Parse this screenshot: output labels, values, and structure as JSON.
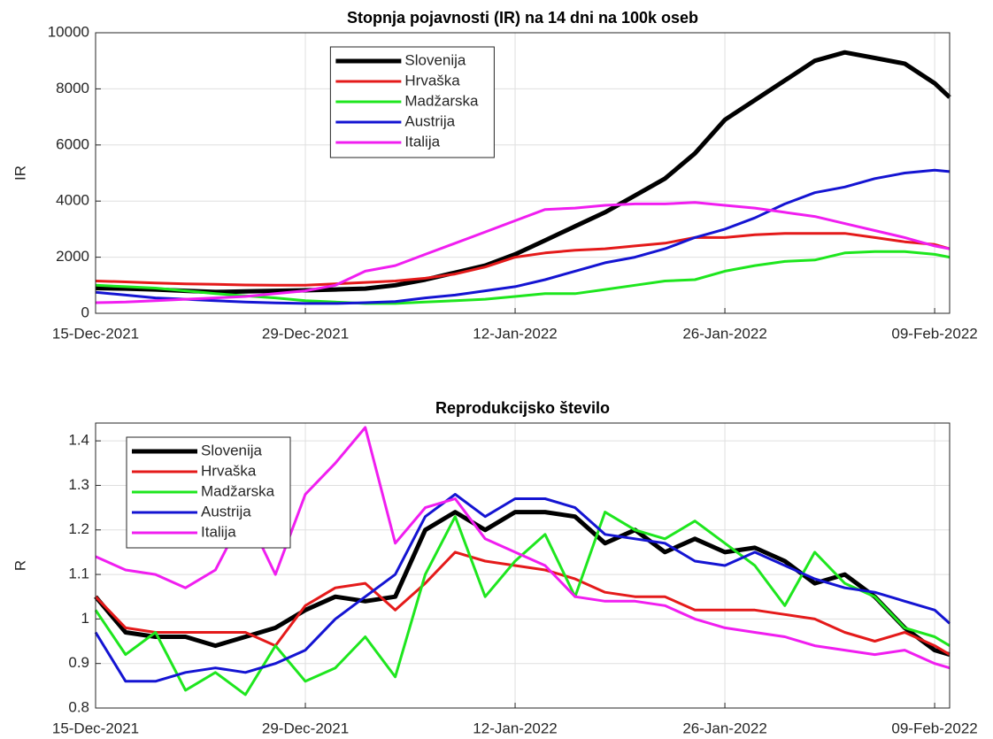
{
  "chart_data": [
    {
      "type": "line",
      "title": "Stopnja pojavnosti (IR) na 14 dni na 100k oseb",
      "y_label": "IR",
      "x": [
        "15-Dec-2021",
        "17-Dec-2021",
        "19-Dec-2021",
        "21-Dec-2021",
        "23-Dec-2021",
        "25-Dec-2021",
        "27-Dec-2021",
        "29-Dec-2021",
        "31-Dec-2021",
        "02-Jan-2022",
        "04-Jan-2022",
        "06-Jan-2022",
        "08-Jan-2022",
        "10-Jan-2022",
        "12-Jan-2022",
        "14-Jan-2022",
        "16-Jan-2022",
        "18-Jan-2022",
        "20-Jan-2022",
        "22-Jan-2022",
        "24-Jan-2022",
        "26-Jan-2022",
        "28-Jan-2022",
        "30-Jan-2022",
        "01-Feb-2022",
        "03-Feb-2022",
        "05-Feb-2022",
        "07-Feb-2022",
        "09-Feb-2022",
        "10-Feb-2022"
      ],
      "xlim": [
        "15-Dec-2021",
        "10-Feb-2022"
      ],
      "xticks": [
        "15-Dec-2021",
        "29-Dec-2021",
        "12-Jan-2022",
        "26-Jan-2022",
        "09-Feb-2022"
      ],
      "ylim": [
        0,
        10000
      ],
      "yticks": [
        0,
        2000,
        4000,
        6000,
        8000,
        10000
      ],
      "grid": true,
      "legend": "north",
      "series": [
        {
          "name": "Slovenija",
          "color": "#000000",
          "width": 5,
          "values": [
            900,
            880,
            850,
            800,
            760,
            780,
            800,
            820,
            850,
            880,
            1000,
            1200,
            1450,
            1700,
            2100,
            2600,
            3100,
            3600,
            4200,
            4800,
            5700,
            6900,
            7600,
            8300,
            9000,
            9300,
            9100,
            8900,
            8200,
            7700
          ]
        },
        {
          "name": "Hrvaška",
          "color": "#e41a1a",
          "width": 3,
          "values": [
            1150,
            1120,
            1080,
            1050,
            1030,
            1010,
            1000,
            1000,
            1050,
            1100,
            1150,
            1250,
            1400,
            1650,
            2000,
            2150,
            2250,
            2300,
            2400,
            2500,
            2700,
            2700,
            2800,
            2850,
            2850,
            2850,
            2700,
            2550,
            2450,
            2300
          ]
        },
        {
          "name": "Madžarska",
          "color": "#1ee61e",
          "width": 3,
          "values": [
            1000,
            950,
            900,
            800,
            700,
            620,
            550,
            450,
            400,
            350,
            350,
            400,
            450,
            500,
            600,
            700,
            700,
            850,
            1000,
            1150,
            1200,
            1500,
            1700,
            1850,
            1900,
            2150,
            2200,
            2200,
            2100,
            2000
          ]
        },
        {
          "name": "Austrija",
          "color": "#1414d2",
          "width": 3,
          "values": [
            750,
            650,
            550,
            500,
            450,
            400,
            370,
            350,
            350,
            380,
            420,
            550,
            650,
            800,
            950,
            1200,
            1500,
            1800,
            2000,
            2300,
            2700,
            3000,
            3400,
            3900,
            4300,
            4500,
            4800,
            5000,
            5100,
            5050
          ]
        },
        {
          "name": "Italija",
          "color": "#f01ef0",
          "width": 3,
          "values": [
            380,
            400,
            450,
            500,
            550,
            600,
            700,
            800,
            1000,
            1500,
            1700,
            2100,
            2500,
            2900,
            3300,
            3700,
            3750,
            3850,
            3900,
            3900,
            3950,
            3850,
            3750,
            3600,
            3450,
            3200,
            2950,
            2700,
            2400,
            2300
          ]
        }
      ]
    },
    {
      "type": "line",
      "title": "Reprodukcijsko število",
      "y_label": "R",
      "x": [
        "15-Dec-2021",
        "17-Dec-2021",
        "19-Dec-2021",
        "21-Dec-2021",
        "23-Dec-2021",
        "25-Dec-2021",
        "27-Dec-2021",
        "29-Dec-2021",
        "31-Dec-2021",
        "02-Jan-2022",
        "04-Jan-2022",
        "06-Jan-2022",
        "08-Jan-2022",
        "10-Jan-2022",
        "12-Jan-2022",
        "14-Jan-2022",
        "16-Jan-2022",
        "18-Jan-2022",
        "20-Jan-2022",
        "22-Jan-2022",
        "24-Jan-2022",
        "26-Jan-2022",
        "28-Jan-2022",
        "30-Jan-2022",
        "01-Feb-2022",
        "03-Feb-2022",
        "05-Feb-2022",
        "07-Feb-2022",
        "09-Feb-2022",
        "10-Feb-2022"
      ],
      "xlim": [
        "15-Dec-2021",
        "10-Feb-2022"
      ],
      "xticks": [
        "15-Dec-2021",
        "29-Dec-2021",
        "12-Jan-2022",
        "26-Jan-2022",
        "09-Feb-2022"
      ],
      "ylim": [
        0.8,
        1.44
      ],
      "yticks": [
        0.8,
        0.9,
        1,
        1.1,
        1.2,
        1.3,
        1.4
      ],
      "grid": true,
      "legend": "northwest",
      "series": [
        {
          "name": "Slovenija",
          "color": "#000000",
          "width": 5,
          "values": [
            1.05,
            0.97,
            0.96,
            0.96,
            0.94,
            0.96,
            0.98,
            1.02,
            1.05,
            1.04,
            1.05,
            1.2,
            1.24,
            1.2,
            1.24,
            1.24,
            1.23,
            1.17,
            1.2,
            1.15,
            1.18,
            1.15,
            1.16,
            1.13,
            1.08,
            1.1,
            1.05,
            0.98,
            0.93,
            0.92
          ]
        },
        {
          "name": "Hrvaška",
          "color": "#e41a1a",
          "width": 3,
          "values": [
            1.05,
            0.98,
            0.97,
            0.97,
            0.97,
            0.97,
            0.94,
            1.03,
            1.07,
            1.08,
            1.02,
            1.08,
            1.15,
            1.13,
            1.12,
            1.11,
            1.09,
            1.06,
            1.05,
            1.05,
            1.02,
            1.02,
            1.02,
            1.01,
            1.0,
            0.97,
            0.95,
            0.97,
            0.94,
            0.92
          ]
        },
        {
          "name": "Madžarska",
          "color": "#1ee61e",
          "width": 3,
          "values": [
            1.02,
            0.92,
            0.97,
            0.84,
            0.88,
            0.83,
            0.94,
            0.86,
            0.89,
            0.96,
            0.87,
            1.1,
            1.23,
            1.05,
            1.13,
            1.19,
            1.05,
            1.24,
            1.2,
            1.18,
            1.22,
            1.17,
            1.12,
            1.03,
            1.15,
            1.08,
            1.05,
            0.98,
            0.96,
            0.94
          ]
        },
        {
          "name": "Austrija",
          "color": "#1414d2",
          "width": 3,
          "values": [
            0.97,
            0.86,
            0.86,
            0.88,
            0.89,
            0.88,
            0.9,
            0.93,
            1.0,
            1.05,
            1.1,
            1.23,
            1.28,
            1.23,
            1.27,
            1.27,
            1.25,
            1.19,
            1.18,
            1.17,
            1.13,
            1.12,
            1.15,
            1.12,
            1.09,
            1.07,
            1.06,
            1.04,
            1.02,
            0.99
          ]
        },
        {
          "name": "Italija",
          "color": "#f01ef0",
          "width": 3,
          "values": [
            1.14,
            1.11,
            1.1,
            1.07,
            1.11,
            1.24,
            1.1,
            1.28,
            1.35,
            1.43,
            1.17,
            1.25,
            1.27,
            1.18,
            1.15,
            1.12,
            1.05,
            1.04,
            1.04,
            1.03,
            1.0,
            0.98,
            0.97,
            0.96,
            0.94,
            0.93,
            0.92,
            0.93,
            0.9,
            0.89
          ]
        }
      ]
    }
  ]
}
